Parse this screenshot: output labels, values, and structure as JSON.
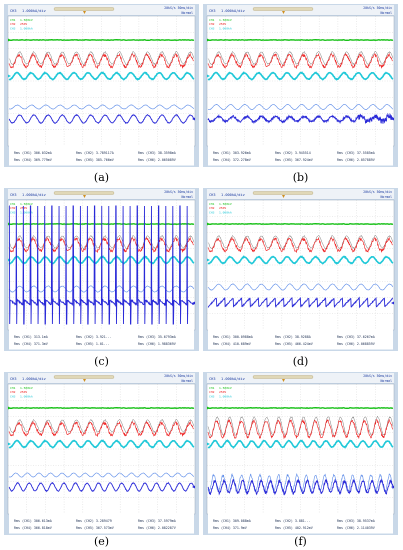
{
  "panels": [
    {
      "caption": "(a)",
      "header": {
        "left": "CH3",
        "scale": "1.000kA/div",
        "right_top": "20kS/s  50ms/div",
        "right_bottom": "Normal"
      },
      "channels": [
        {
          "label": "CH1",
          "value": "1.500kV"
        },
        {
          "label": "CH2",
          "value": "250V"
        },
        {
          "label": "CH3",
          "value": "1.000kA"
        }
      ],
      "readouts": [
        {
          "line": "Rms (CH1) 306.032mA"
        },
        {
          "line": "Rms (CH2) 3.789117A"
        },
        {
          "line": "Rms (CH3) 38.3598mA"
        },
        {
          "line": "Rms (CH4) 369.779mV"
        },
        {
          "line": "Rms (CH5) 385.766mV"
        },
        {
          "line": "Rms (CH6) 2.065089V"
        }
      ],
      "traces": {
        "blue_style": "regular-sine",
        "blue_cycles": 13,
        "red_cycles": 13,
        "spike": false
      }
    },
    {
      "caption": "(b)",
      "header": {
        "left": "CH3",
        "scale": "1.000kA/div",
        "right_top": "20kS/s  50ms/div",
        "right_bottom": "Normal"
      },
      "channels": [
        {
          "label": "CH1",
          "value": "1.500kV"
        },
        {
          "label": "CH2",
          "value": "250V"
        },
        {
          "label": "CH3",
          "value": "1.000kA"
        }
      ],
      "readouts": [
        {
          "line": "Rms (CH1) 303.926mA"
        },
        {
          "line": "Rms (CH2) 3.945514"
        },
        {
          "line": "Rms (CH3) 37.5585mA"
        },
        {
          "line": "Rms (CH4) 372.278mV"
        },
        {
          "line": "Rms (CH5) 367.924mV"
        },
        {
          "line": "Rms (CH6) 2.057889V"
        }
      ],
      "traces": {
        "blue_style": "noisy",
        "blue_cycles": 13,
        "red_cycles": 13,
        "spike": false
      }
    },
    {
      "caption": "(c)",
      "header": {
        "left": "CH3",
        "scale": "1.000kA/div",
        "right_top": "20kS/s  50ms/div",
        "right_bottom": "Normal"
      },
      "channels": [
        {
          "label": "CH1",
          "value": "1.500kV"
        },
        {
          "label": "CH2",
          "value": "250V"
        },
        {
          "label": "CH3",
          "value": "1.000kA"
        }
      ],
      "readouts": [
        {
          "line": "Rms (CH1) 313.1mA"
        },
        {
          "line": "Rms (CH2) 3.921..."
        },
        {
          "line": "Rms (CH3) 35.6793mA"
        },
        {
          "line": "Rms (CH4) 371.3mV"
        },
        {
          "line": "Rms (CH5) 1.01..."
        },
        {
          "line": "Rms (CH6) 1.988369V"
        }
      ],
      "traces": {
        "blue_style": "tall-spikes",
        "blue_cycles": 13,
        "red_cycles": 13,
        "spike": true
      }
    },
    {
      "caption": "(d)",
      "header": {
        "left": "CH3",
        "scale": "1.000kA/div",
        "right_top": "20kS/s  50ms/div",
        "right_bottom": "Normal"
      },
      "channels": [
        {
          "label": "CH1",
          "value": "1.500kV"
        },
        {
          "label": "CH2",
          "value": "250V"
        },
        {
          "label": "CH3",
          "value": "1.000kA"
        }
      ],
      "readouts": [
        {
          "line": "Rms (CH1) 300.0988mA"
        },
        {
          "line": "Rms (CH2) 38.9288A"
        },
        {
          "line": "Rms (CH3) 37.6267mA"
        },
        {
          "line": "Rms (CH4) 410.689mV"
        },
        {
          "line": "Rms (CH5) 466.424mV"
        },
        {
          "line": "Rms (CH6) 2.068859V"
        }
      ],
      "traces": {
        "blue_style": "sawtooth",
        "blue_cycles": 13,
        "red_cycles": 13,
        "spike": false
      }
    },
    {
      "caption": "(e)",
      "header": {
        "left": "CH3",
        "scale": "1.000kA/div",
        "right_top": "20kS/s  50ms/div",
        "right_bottom": "Normal"
      },
      "channels": [
        {
          "label": "CH1",
          "value": "1.500kV"
        },
        {
          "label": "CH2",
          "value": "250V"
        },
        {
          "label": "CH3",
          "value": "1.000kA"
        }
      ],
      "readouts": [
        {
          "line": "Rms (CH1) 306.613mA"
        },
        {
          "line": "Rms (CH2) 3.289479"
        },
        {
          "line": "Rms (CH3) 37.5979mA"
        },
        {
          "line": "Rms (CH4) 366.818mV"
        },
        {
          "line": "Rms (CH5) 367.573mV"
        },
        {
          "line": "Rms (CH6) 2.082287V"
        }
      ],
      "traces": {
        "blue_style": "regular-sine",
        "blue_cycles": 16,
        "red_cycles": 13,
        "spike": false
      }
    },
    {
      "caption": "(f)",
      "header": {
        "left": "CH3",
        "scale": "1.000kA/div",
        "right_top": "20kS/s  50ms/div",
        "right_bottom": "Normal"
      },
      "channels": [
        {
          "label": "CH1",
          "value": "1.500kV"
        },
        {
          "label": "CH2",
          "value": "250V"
        },
        {
          "label": "CH3",
          "value": "1.000kA"
        }
      ],
      "readouts": [
        {
          "line": "Rms (CH1) 309.088mA"
        },
        {
          "line": "Rms (CH2) 3.881..."
        },
        {
          "line": "Rms (CH3) 38.9537mA"
        },
        {
          "line": "Rms (CH4) 371.9mV"
        },
        {
          "line": "Rms (CH5) 402.912mV"
        },
        {
          "line": "Rms (CH6) 2.114039V"
        }
      ],
      "traces": {
        "blue_style": "dense-noisy",
        "blue_cycles": 20,
        "red_cycles": 15,
        "spike": false
      }
    }
  ],
  "colors": {
    "frame": "#c9d8e8",
    "screen": "#ffffff",
    "grid": "#c8c8c8",
    "header_bg": "#eef2f7",
    "green": "#18c018",
    "red": "#ee2020",
    "gray": "#7a7a7a",
    "cyan": "#20c8d8",
    "blue": "#2a2ad8",
    "blue_light": "#5a8ae8",
    "text_blue": "#1a3aa0",
    "slider": "#e0d8b8"
  }
}
